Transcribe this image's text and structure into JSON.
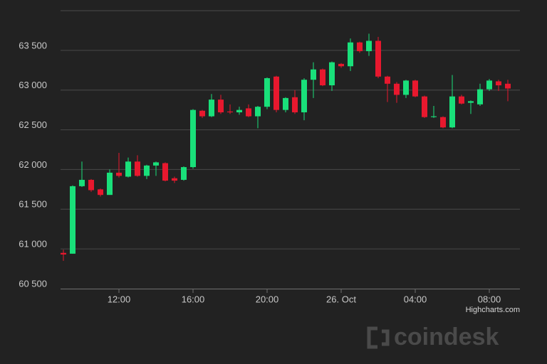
{
  "chart_data": {
    "type": "candlestick",
    "categories": [
      null,
      null,
      null,
      null,
      null,
      null,
      "12:00",
      null,
      null,
      null,
      null,
      null,
      null,
      null,
      "16:00",
      null,
      null,
      null,
      null,
      null,
      null,
      null,
      "20:00",
      null,
      null,
      null,
      null,
      null,
      null,
      null,
      "26. Oct",
      null,
      null,
      null,
      null,
      null,
      null,
      null,
      "04:00",
      null,
      null,
      null,
      null,
      null,
      null,
      null,
      "08:00",
      null,
      null
    ],
    "open": [
      60950,
      60940,
      61790,
      61870,
      61750,
      61680,
      61960,
      61910,
      62100,
      61920,
      62050,
      62080,
      61890,
      61870,
      62030,
      62740,
      62670,
      62880,
      62730,
      62720,
      62770,
      62670,
      62790,
      63170,
      62750,
      62910,
      62720,
      63130,
      63260,
      63060,
      63330,
      63300,
      63600,
      63490,
      63620,
      63170,
      63080,
      62940,
      63120,
      62920,
      62660,
      62660,
      62530,
      62920,
      62840,
      62820,
      63010,
      63110,
      63080
    ],
    "high": [
      60990,
      61800,
      62100,
      61880,
      61760,
      62000,
      62210,
      62150,
      62180,
      62060,
      62100,
      62090,
      61910,
      62040,
      62760,
      62750,
      62950,
      62940,
      62820,
      62790,
      62820,
      62800,
      63160,
      63180,
      62910,
      63000,
      63150,
      63350,
      63270,
      63360,
      63340,
      63650,
      63610,
      63710,
      63670,
      63180,
      63100,
      63130,
      63130,
      62930,
      62800,
      62670,
      63190,
      62940,
      62870,
      63080,
      63140,
      63130,
      63130
    ],
    "low": [
      60850,
      60940,
      61780,
      61720,
      61660,
      61680,
      61900,
      61900,
      61910,
      61880,
      61920,
      61850,
      61830,
      61860,
      62010,
      62650,
      62660,
      62700,
      62700,
      62690,
      62660,
      62520,
      62760,
      62720,
      62720,
      62700,
      62620,
      62900,
      63050,
      62990,
      63280,
      63240,
      63470,
      63430,
      63150,
      62850,
      62840,
      62900,
      62910,
      62650,
      62650,
      62520,
      62520,
      62820,
      62700,
      62800,
      62990,
      62990,
      62860
    ],
    "close": [
      60930,
      61790,
      61870,
      61740,
      61680,
      61960,
      61920,
      62100,
      61920,
      62050,
      62090,
      61860,
      61860,
      62030,
      62750,
      62670,
      62880,
      62720,
      62720,
      62750,
      62670,
      62790,
      63150,
      62750,
      62900,
      62720,
      63130,
      63260,
      63060,
      63350,
      63300,
      63600,
      63490,
      63620,
      63170,
      63080,
      62940,
      63120,
      62920,
      62660,
      62670,
      62530,
      62920,
      62830,
      62860,
      63010,
      63120,
      63060,
      63020
    ],
    "up_color": "#19e07a",
    "down_color": "#e8182e",
    "ylim": [
      60500,
      64000
    ],
    "yticks": [
      {
        "value": 60500,
        "label": "60 500"
      },
      {
        "value": 61000,
        "label": "61 000"
      },
      {
        "value": 61500,
        "label": "61 500"
      },
      {
        "value": 62000,
        "label": "62 000"
      },
      {
        "value": 62500,
        "label": "62 500"
      },
      {
        "value": 63000,
        "label": "63 000"
      },
      {
        "value": 63500,
        "label": "63 500"
      }
    ],
    "grid": true,
    "credits": "Highcharts.com",
    "watermark": "coindesk"
  }
}
